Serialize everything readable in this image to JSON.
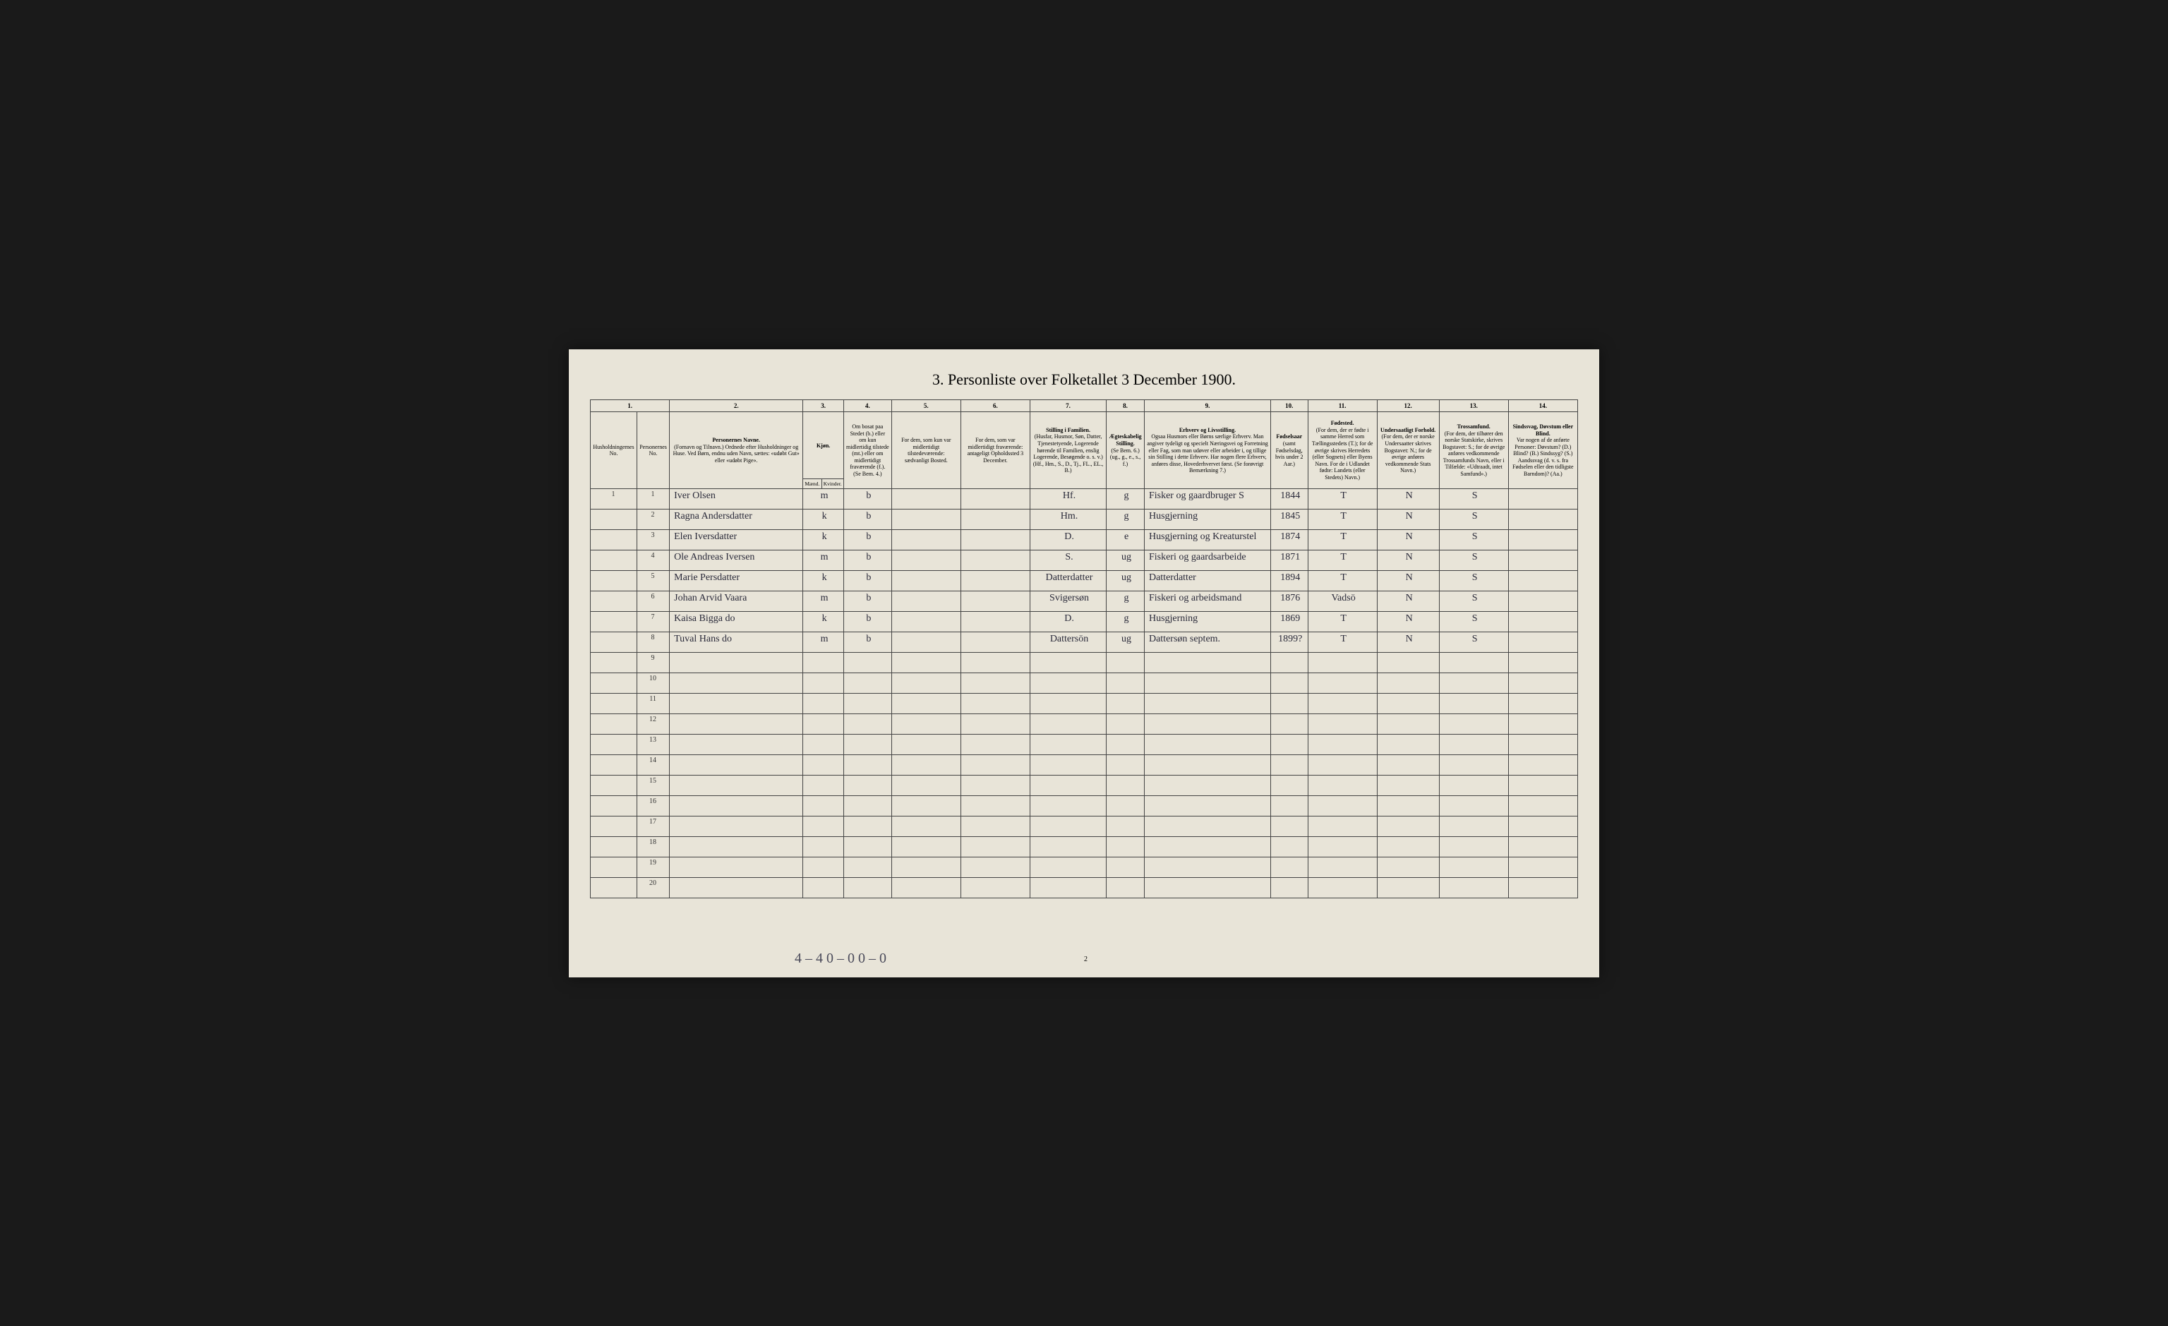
{
  "title": "3. Personliste over Folketallet 3 December 1900.",
  "column_numbers": [
    "1.",
    "2.",
    "3.",
    "4.",
    "5.",
    "6.",
    "7.",
    "8.",
    "9.",
    "10.",
    "11.",
    "12.",
    "13.",
    "14."
  ],
  "headers": {
    "col1a": "Husholdningernes No.",
    "col1b": "Personernes No.",
    "col2": "Personernes Navne.",
    "col2_sub": "(Fornavn og Tilnavn.)\nOrdnede efter Husholdninger og Huse.\nVed Børn, endnu uden Navn, sættes: «udøbt Gut» eller «udøbt Pige».",
    "col3": "Kjøn.",
    "col3_sub1": "Mænd.",
    "col3_sub2": "Kvinder.",
    "col3_sub3": "m. k.",
    "col4": "Om bosat paa Stedet (b.) eller om kun midlertidig tilstede (mt.) eller om midlertidigt fraværende (f.).",
    "col4_sub": "(Se Bem. 4.)",
    "col5": "For dem, som kun var midlertidigt tilstedeværende:",
    "col5_sub": "sædvanligt Bosted.",
    "col6": "For dem, som var midlertidigt fraværende:",
    "col6_sub": "antageligt Opholdssted 3 December.",
    "col7": "Stilling i Familien.",
    "col7_sub": "(Husfar, Husmor, Søn, Datter, Tjenestetyende, Logerende hørende til Familien, enslig Logerende, Besøgende o. s. v.)\n(Hf., Hm., S., D., Tj., FL., EL., B.)",
    "col8": "Ægteskabelig Stilling.",
    "col8_sub": "(Se Bem. 6.)\n(ug., g., e., s., f.)",
    "col9": "Erhverv og Livsstilling.",
    "col9_sub": "Ogsaa Husmors eller Børns særlige Erhverv.\nMan angiver tydeligt og specielt Næringsvei og Forretning eller Fag, som man udøver eller arbeider i, og tillige sin Stilling i dette Erhverv.\nHar nogen flere Erhverv, anføres disse, Hovederhvervet først.\n(Se forøvrigt Bemærkning 7.)",
    "col10": "Fødselsaar",
    "col10_sub": "(samt Fødselsdag, hvis under 2 Aar.)",
    "col11": "Fødested.",
    "col11_sub": "(For dem, der er fødte i samme Herred som Tællingsstedets (T.); for de øvrige skrives Herredets (eller Sognets) eller Byens Navn. For de i Udlandet fødte: Landets (eller Stedets) Navn.)",
    "col12": "Undersaatligt Forhold.",
    "col12_sub": "(For dem, der er norske Undersaatter skrives Bogstavet: N.; for de øvrige anføres vedkommende Stats Navn.)",
    "col13": "Trossamfund.",
    "col13_sub": "(For dem, der tilhører den norske Statskirke, skrives Bogstavet: S.; for de øvrige anføres vedkommende Trossamfunds Navn, eller i Tilfælde: «Udtraadt, intet Samfund».)",
    "col14": "Sindssvag, Døvstum eller Blind.",
    "col14_sub": "Var nogen af de anførte Personer:\nDøvstum? (D.)\nBlind? (B.)\nSindssyg? (S.)\nAandssvag (d. v. s. fra Fødselen eller den tidligste Barndom)? (Aa.)"
  },
  "rows": [
    {
      "hnum": "1",
      "pnum": "1",
      "name": "Iver Olsen",
      "sex": "m",
      "res": "b",
      "col5": "",
      "col6": "",
      "fam": "Hf.",
      "mar": "g",
      "occ": "Fisker og gaardbruger S",
      "year": "1844",
      "birth": "T",
      "nat": "N",
      "rel": "S",
      "col14": ""
    },
    {
      "hnum": "",
      "pnum": "2",
      "name": "Ragna Andersdatter",
      "sex": "k",
      "res": "b",
      "col5": "",
      "col6": "",
      "fam": "Hm.",
      "mar": "g",
      "occ": "Husgjerning",
      "year": "1845",
      "birth": "T",
      "nat": "N",
      "rel": "S",
      "col14": ""
    },
    {
      "hnum": "",
      "pnum": "3",
      "name": "Elen Iversdatter",
      "sex": "k",
      "res": "b",
      "col5": "",
      "col6": "",
      "fam": "D.",
      "mar": "e",
      "occ": "Husgjerning og Kreaturstel",
      "year": "1874",
      "birth": "T",
      "nat": "N",
      "rel": "S",
      "col14": ""
    },
    {
      "hnum": "",
      "pnum": "4",
      "name": "Ole Andreas Iversen",
      "sex": "m",
      "res": "b",
      "col5": "",
      "col6": "",
      "fam": "S.",
      "mar": "ug",
      "occ": "Fiskeri og gaardsarbeide",
      "year": "1871",
      "birth": "T",
      "nat": "N",
      "rel": "S",
      "col14": ""
    },
    {
      "hnum": "",
      "pnum": "5",
      "name": "Marie Persdatter",
      "sex": "k",
      "res": "b",
      "col5": "",
      "col6": "",
      "fam": "Datterdatter",
      "mar": "ug",
      "occ": "Datterdatter",
      "year": "1894",
      "birth": "T",
      "nat": "N",
      "rel": "S",
      "col14": ""
    },
    {
      "hnum": "",
      "pnum": "6",
      "name": "Johan Arvid Vaara",
      "sex": "m",
      "res": "b",
      "col5": "",
      "col6": "",
      "fam": "Svigersøn",
      "mar": "g",
      "occ": "Fiskeri og arbeidsmand",
      "year": "1876",
      "birth": "Vadsö",
      "nat": "N",
      "rel": "S",
      "col14": ""
    },
    {
      "hnum": "",
      "pnum": "7",
      "name": "Kaisa Bigga    do",
      "sex": "k",
      "res": "b",
      "col5": "",
      "col6": "",
      "fam": "D.",
      "mar": "g",
      "occ": "Husgjerning",
      "year": "1869",
      "birth": "T",
      "nat": "N",
      "rel": "S",
      "col14": ""
    },
    {
      "hnum": "",
      "pnum": "8",
      "name": "Tuval Hans    do",
      "sex": "m",
      "res": "b",
      "col5": "",
      "col6": "",
      "fam": "Dattersön",
      "mar": "ug",
      "occ": "Dattersøn septem.",
      "year": "1899?",
      "birth": "T",
      "nat": "N",
      "rel": "S",
      "col14": ""
    }
  ],
  "empty_row_count": 12,
  "footer_note": "4 – 4   0 – 0   0 – 0",
  "page_number": "2"
}
